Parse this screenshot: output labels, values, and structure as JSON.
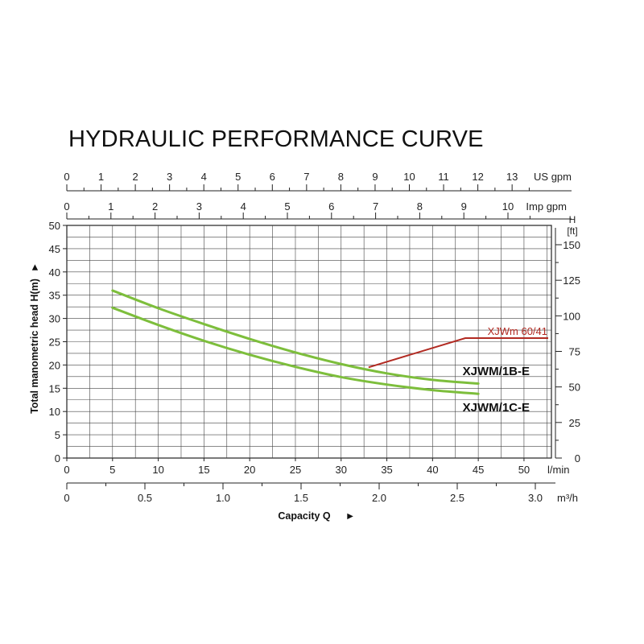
{
  "chart_data": {
    "type": "line",
    "title": "HYDRAULIC PERFORMANCE CURVE",
    "xlabel": "Capacity Q",
    "ylabel": "Total manometric head H(m)",
    "x_unit": "l/min",
    "xlim": [
      0,
      53
    ],
    "ylim": [
      0,
      50
    ],
    "grid": true,
    "x_ticks": [
      0,
      5,
      10,
      15,
      20,
      25,
      30,
      35,
      40,
      45,
      50
    ],
    "y_ticks": [
      0,
      5,
      10,
      15,
      20,
      25,
      30,
      35,
      40,
      45,
      50
    ],
    "arrow_glyph": "►",
    "series": [
      {
        "name": "XJWM/1B-E",
        "color": "#7dbe3c",
        "x": [
          5,
          10,
          15,
          20,
          25,
          30,
          35,
          40,
          45
        ],
        "y": [
          36,
          32.2,
          28.8,
          25.6,
          22.7,
          20.2,
          18.2,
          16.8,
          16.0
        ]
      },
      {
        "name": "XJWM/1C-E",
        "color": "#7dbe3c",
        "x": [
          5,
          10,
          15,
          20,
          25,
          30,
          35,
          40,
          45
        ],
        "y": [
          32.3,
          28.6,
          25.2,
          22.2,
          19.6,
          17.4,
          15.8,
          14.6,
          13.8
        ]
      }
    ],
    "model_annotation": {
      "text": "XJWm 60/41",
      "color": "#b22a22",
      "x": 33,
      "y": 19.5
    },
    "secondary_axes": {
      "us_gpm": {
        "unit": "US gpm",
        "ticks": [
          0,
          1,
          2,
          3,
          4,
          5,
          6,
          7,
          8,
          9,
          10,
          11,
          12,
          13
        ]
      },
      "imp_gpm": {
        "unit": "Imp gpm",
        "ticks": [
          0,
          1,
          2,
          3,
          4,
          5,
          6,
          7,
          8,
          9,
          10
        ]
      },
      "m3h": {
        "unit": "m³/h",
        "ticks": [
          "0",
          "0.5",
          "1.0",
          "1.5",
          "2.0",
          "2.5",
          "3.0"
        ]
      },
      "feet": {
        "unit_top": "H",
        "unit_bottom": "[ft]",
        "ticks": [
          0,
          25,
          50,
          75,
          100,
          125,
          150
        ]
      }
    }
  }
}
